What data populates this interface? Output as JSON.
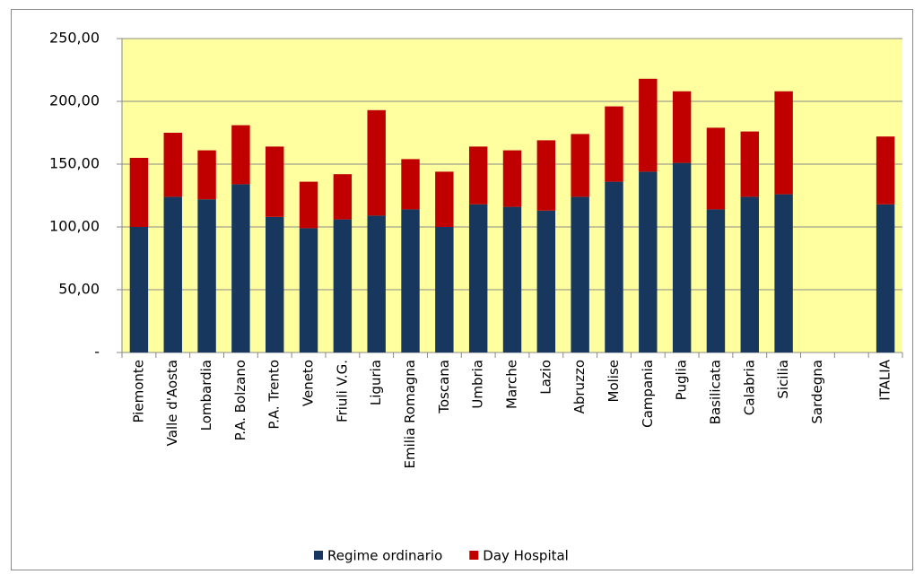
{
  "chart_data": {
    "type": "stacked_bar",
    "categories": [
      "Piemonte",
      "Valle d'Aosta",
      "Lombardia",
      "P.A. Bolzano",
      "P.A. Trento",
      "Veneto",
      "Friuli V.G.",
      "Liguria",
      "Emilia Romagna",
      "Toscana",
      "Umbria",
      "Marche",
      "Lazio",
      "Abruzzo",
      "Molise",
      "Campania",
      "Puglia",
      "Basilicata",
      "Calabria",
      "Sicilia",
      "Sardegna",
      null,
      "ITALIA"
    ],
    "series": [
      {
        "name": "Regime ordinario",
        "color": "#17375e",
        "values": [
          100,
          124,
          122,
          134,
          108,
          99,
          106,
          109,
          114,
          100,
          118,
          116,
          113,
          124,
          136,
          144,
          151,
          114,
          124,
          126,
          null,
          null,
          118
        ]
      },
      {
        "name": "Day Hospital",
        "color": "#c00000",
        "values": [
          55,
          51,
          39,
          47,
          56,
          37,
          36,
          84,
          40,
          44,
          46,
          45,
          56,
          50,
          60,
          74,
          57,
          65,
          52,
          82,
          null,
          null,
          54
        ]
      }
    ],
    "ylim": [
      0,
      250
    ],
    "yticks": [
      {
        "value": 0,
        "label": "-"
      },
      {
        "value": 50,
        "label": "50,00"
      },
      {
        "value": 100,
        "label": "100,00"
      },
      {
        "value": 150,
        "label": "150,00"
      },
      {
        "value": 200,
        "label": "200,00"
      },
      {
        "value": 250,
        "label": "250,00"
      }
    ],
    "grid": true,
    "plot_background": "#ffffa0",
    "legend": "bottom"
  }
}
